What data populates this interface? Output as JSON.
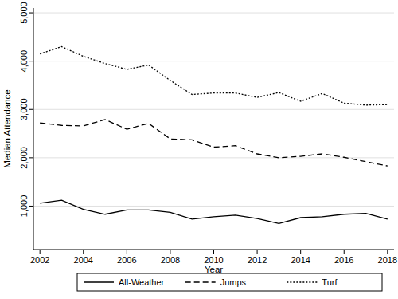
{
  "chart_data": {
    "type": "line",
    "x_label": "Year",
    "y_label": "Median Attendance",
    "x": [
      2002,
      2003,
      2004,
      2005,
      2006,
      2007,
      2008,
      2009,
      2010,
      2011,
      2012,
      2013,
      2014,
      2015,
      2016,
      2017,
      2018
    ],
    "series": [
      {
        "name": "All-Weather",
        "color": "#000000",
        "line_style": "solid",
        "values": [
          1060,
          1120,
          930,
          830,
          920,
          920,
          870,
          730,
          780,
          810,
          740,
          640,
          760,
          780,
          830,
          850,
          730
        ]
      },
      {
        "name": "Jumps",
        "color": "#000000",
        "line_style": "dashed",
        "values": [
          2720,
          2670,
          2660,
          2790,
          2590,
          2710,
          2390,
          2370,
          2220,
          2250,
          2080,
          2000,
          2030,
          2080,
          2010,
          1920,
          1830
        ]
      },
      {
        "name": "Turf",
        "color": "#000000",
        "line_style": "dotted",
        "values": [
          4150,
          4300,
          4100,
          3950,
          3830,
          3920,
          3600,
          3310,
          3340,
          3340,
          3250,
          3350,
          3170,
          3330,
          3130,
          3090,
          3100
        ]
      }
    ],
    "xlim": [
      2001.7,
      2018.3
    ],
    "xticks": [
      2002,
      2004,
      2006,
      2008,
      2010,
      2012,
      2014,
      2016,
      2018
    ],
    "ylim": [
      100,
      5100
    ],
    "yticks": [
      {
        "value": 1000,
        "label": "1,000"
      },
      {
        "value": 2000,
        "label": "2,000"
      },
      {
        "value": 3000,
        "label": "3,000"
      },
      {
        "value": 4000,
        "label": "4,000"
      },
      {
        "value": 5000,
        "label": "5,000"
      }
    ],
    "grid": true,
    "legend": "bottom"
  }
}
